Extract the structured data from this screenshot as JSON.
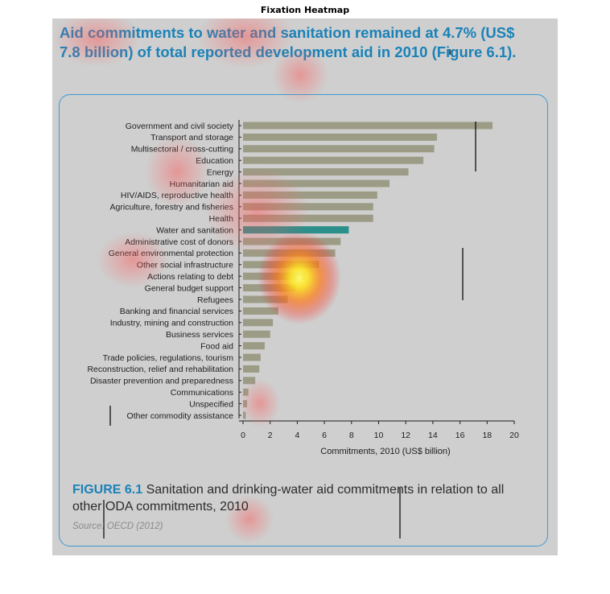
{
  "window": {
    "title": "Fixation Heatmap"
  },
  "slide": {
    "headline": "Aid commitments to water and sanitation remained at 4.7% (US$ 7.8 billion) of total reported development aid in 2010 (Figure 6.1).",
    "caption_label": "FIGURE 6.1",
    "caption_text": "Sanitation and drinking-water aid commitments in relation to all other ODA commitments, 2010",
    "source": "Source: OECD (2012)"
  },
  "colors": {
    "bar": "#9c9c86",
    "highlight_bar": "#2b8f8c",
    "accent": "#1a82b8",
    "panel_background": "#cfcfcf"
  },
  "chart_data": {
    "type": "bar",
    "orientation": "horizontal",
    "categories": [
      "Government and civil society",
      "Transport and storage",
      "Multisectoral / cross-cutting",
      "Education",
      "Energy",
      "Humanitarian aid",
      "HIV/AIDS, reproductive health",
      "Agriculture, forestry and fisheries",
      "Health",
      "Water and sanitation",
      "Administrative cost of donors",
      "General environmental protection",
      "Other social infrastructure",
      "Actions relating to debt",
      "General budget support",
      "Refugees",
      "Banking and financial services",
      "Industry, mining and construction",
      "Business services",
      "Food aid",
      "Trade policies, regulations, tourism",
      "Reconstruction, relief and rehabilitation",
      "Disaster prevention and preparedness",
      "Communications",
      "Unspecified",
      "Other commodity assistance"
    ],
    "values": [
      18.4,
      14.3,
      14.1,
      13.3,
      12.2,
      10.8,
      9.9,
      9.6,
      9.6,
      7.8,
      7.2,
      6.8,
      5.6,
      4.6,
      3.9,
      3.3,
      2.6,
      2.2,
      2.0,
      1.6,
      1.3,
      1.2,
      0.9,
      0.4,
      0.3,
      0.2
    ],
    "highlight": "Water and sanitation",
    "xlabel": "Commitments, 2010 (US$ billion)",
    "xlim": [
      0,
      20
    ],
    "xticks": [
      0,
      2,
      4,
      6,
      8,
      10,
      12,
      14,
      16,
      18,
      20
    ]
  }
}
